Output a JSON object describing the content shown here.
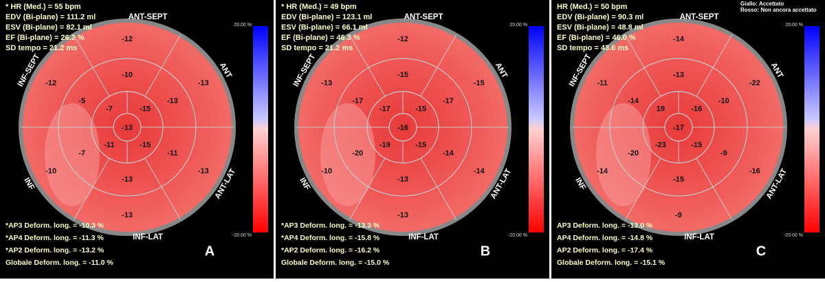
{
  "panels": [
    {
      "letter": "A",
      "header": [
        "* HR (Med.) = 55 bpm",
        "EDV (Bi-plane) = 111.2 ml",
        "ESV (Bi-plane) = 82.1 ml",
        "EF (Bi-plane) = 26.2 %",
        "SD tempo = 21.2 ms"
      ],
      "walls": [
        "ANT-SEPT",
        "ANT",
        "ANT-LAT",
        "INF-LAT",
        "INF",
        "INF-SEPT"
      ],
      "basal": [
        "-12",
        "-13",
        "-13",
        "-13",
        "-10",
        "-12"
      ],
      "mid": [
        "-10",
        "-13",
        "-11",
        "-13",
        "-7",
        "-5"
      ],
      "apical": [
        "-7",
        "-15",
        "-15",
        "-11"
      ],
      "apex": "-13",
      "colorbar": [
        "20.00 %",
        "-20.00 %"
      ],
      "footer": [
        "*AP3 Deform. long. = -10.3 %",
        "*AP4 Deform. long. = -11.3 %",
        "*AP2 Deform. long. = -13.2 %",
        "Globale Deform. long. = -11.0 %"
      ]
    },
    {
      "letter": "B",
      "header": [
        "* HR (Med.) = 49 bpm",
        "EDV (Bi-plane) = 123.1 ml",
        "ESV (Bi-plane) = 66.1 ml",
        "EF (Bi-plane) = 46.3 %",
        "SD tempo = 21.2 ms"
      ],
      "walls": [
        "ANT-SEPT",
        "ANT",
        "ANT-LAT",
        "INF-LAT",
        "INF",
        "INF-SEPT"
      ],
      "basal": [
        "-12",
        "-15",
        "-14",
        "-13",
        "-10",
        "-13"
      ],
      "mid": [
        "-15",
        "-17",
        "-14",
        "-13",
        "-20",
        "-17"
      ],
      "apical": [
        "-17",
        "-15",
        "-15",
        "-19"
      ],
      "apex": "-16",
      "colorbar": [
        "20.00 %",
        "-20.00 %"
      ],
      "footer": [
        "*AP3 Deform. long. = -13.3 %",
        "*AP4 Deform. long. = -15.8 %",
        "*AP2 Deform. long. = -16.2 %",
        "Globale Deform. long. = -15.0 %"
      ]
    },
    {
      "letter": "C",
      "header": [
        "HR (Med.) = 50 bpm",
        "EDV (Bi-plane) = 90.3 ml",
        "ESV (Bi-plane) = 48.8 ml",
        "EF (Bi-plane) = 46.0 %",
        "SD tempo = 43.6 ms"
      ],
      "legend": [
        "Giallo: Accettato",
        "Rosso: Non ancora accettato"
      ],
      "walls": [
        "ANT-SEPT",
        "ANT",
        "ANT-LAT",
        "INF-LAT",
        "INF",
        "INF-SEPT"
      ],
      "basal": [
        "-14",
        "-22",
        "-16",
        "-9",
        "-14",
        "-11"
      ],
      "mid": [
        "-13",
        "-10",
        "-9",
        "-15",
        "-20",
        "-14"
      ],
      "apical": [
        "19",
        "-16",
        "-15",
        "-23"
      ],
      "apex": "-17",
      "colorbar": [
        "20.00 %",
        "-20.00 %"
      ],
      "footer": [
        "AP3 Deform. long. = -13.0 %",
        "AP4 Deform. long. = -14.8 %",
        "AP2 Deform. long. = -17.4 %",
        "Globale Deform. long. = -15.1 %"
      ]
    }
  ]
}
